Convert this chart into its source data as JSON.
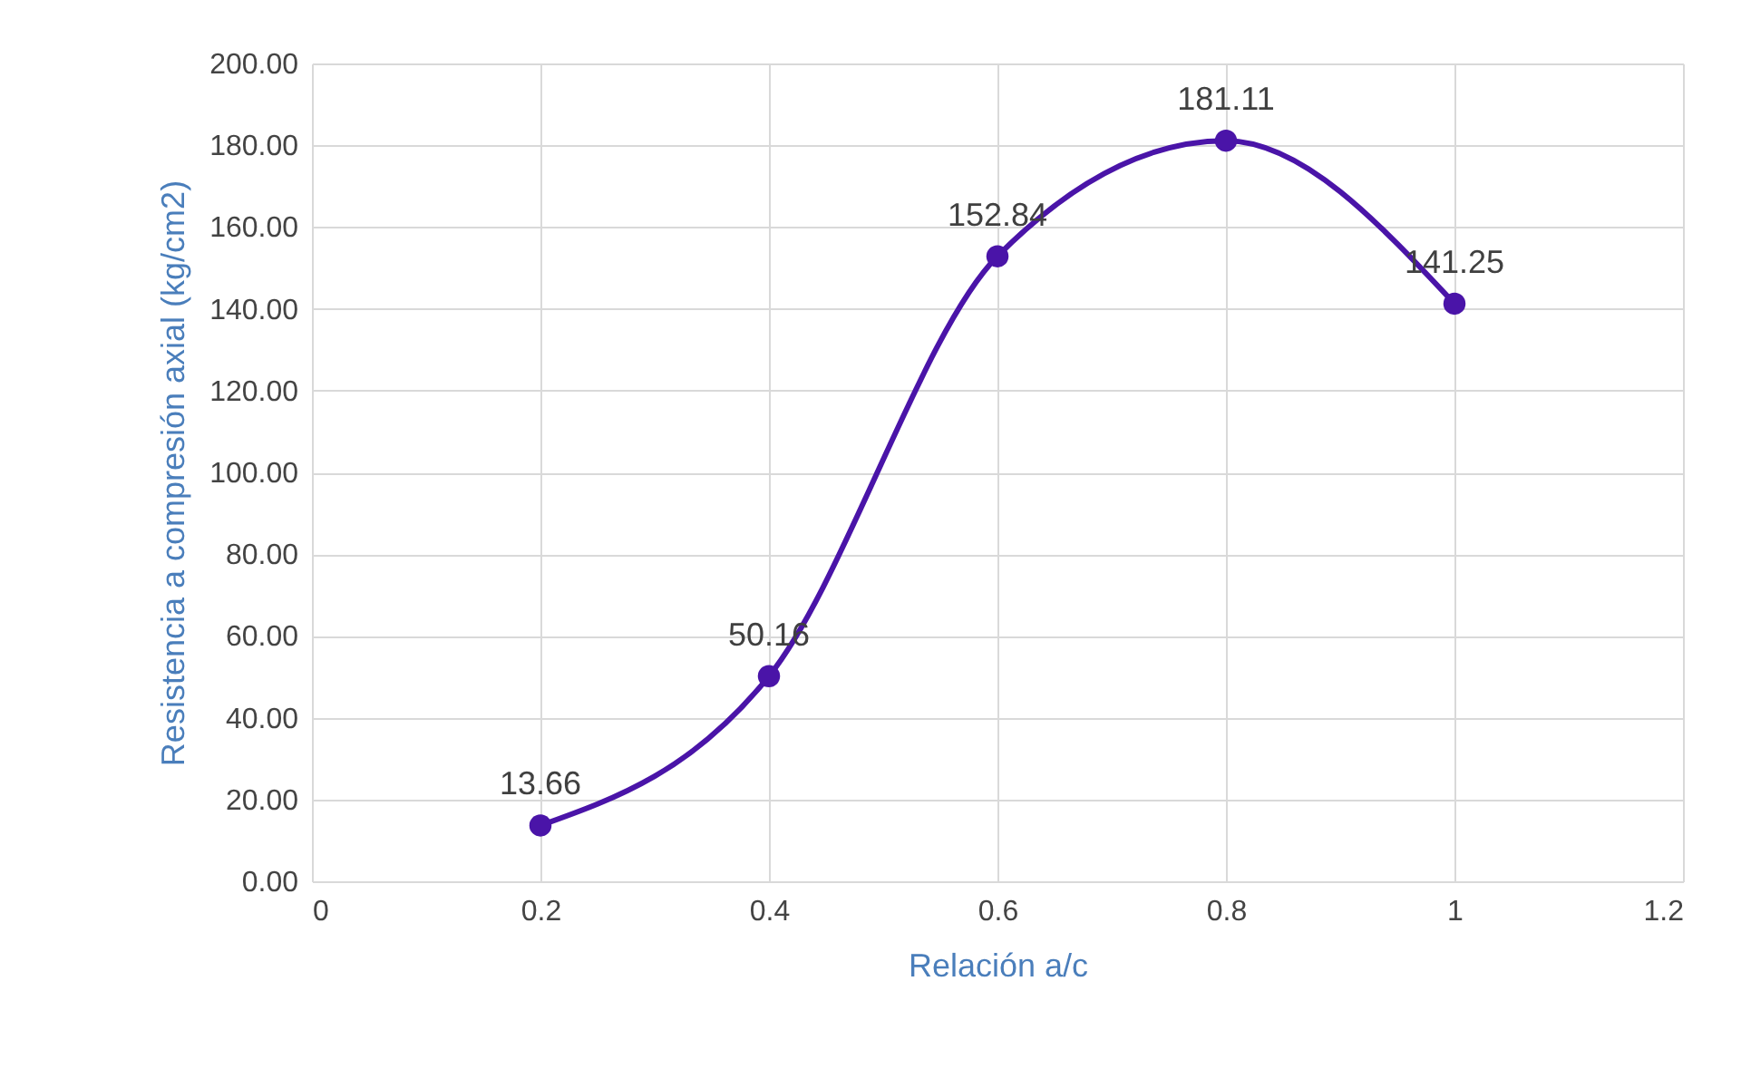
{
  "chart_data": {
    "type": "line",
    "xlabel": "Relación a/c",
    "ylabel": "Resistencia a compresión axial (kg/cm2)",
    "x": [
      0.2,
      0.4,
      0.6,
      0.8,
      1
    ],
    "series": [
      {
        "color": "#4a14a8",
        "values": [
          13.66,
          50.16,
          152.84,
          181.11,
          141.25
        ]
      }
    ],
    "xlim": [
      0,
      1.2
    ],
    "xticks": [
      0,
      0.2,
      0.4,
      0.6,
      0.8,
      1,
      1.2
    ],
    "ylim": [
      0,
      200
    ],
    "yticks": [
      {
        "value": 0,
        "label": "0.00"
      },
      {
        "value": 20,
        "label": "20.00"
      },
      {
        "value": 40,
        "label": "40.00"
      },
      {
        "value": 60,
        "label": "60.00"
      },
      {
        "value": 80,
        "label": "80.00"
      },
      {
        "value": 100,
        "label": "100.00"
      },
      {
        "value": 120,
        "label": "120.00"
      },
      {
        "value": 140,
        "label": "140.00"
      },
      {
        "value": 160,
        "label": "160.00"
      },
      {
        "value": 180,
        "label": "180.00"
      },
      {
        "value": 200,
        "label": "200.00"
      }
    ],
    "grid": true,
    "marker": "circle",
    "line_style": "solid",
    "data_labels": true
  }
}
